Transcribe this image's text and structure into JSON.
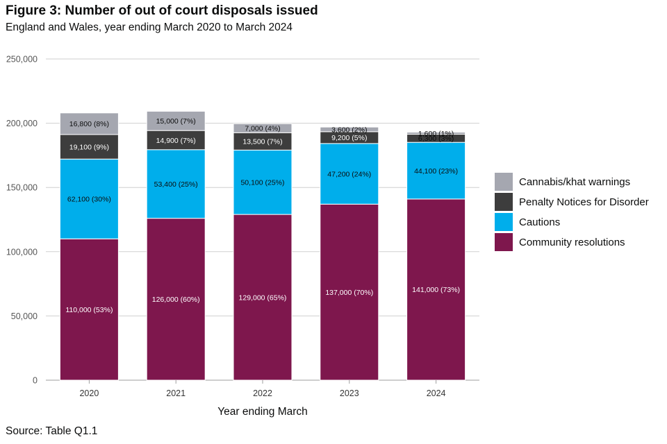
{
  "title": "Figure 3: Number of out of court disposals issued",
  "subtitle": "England and Wales, year ending March 2020 to March 2024",
  "source": "Source: Table Q1.1",
  "chart_data": {
    "type": "bar",
    "stacked": true,
    "title": "Figure 3: Number of out of court disposals issued",
    "subtitle": "England and Wales, year ending March 2020 to March 2024",
    "xlabel": "Year ending March",
    "ylabel": "",
    "ylim": [
      0,
      250000
    ],
    "yticks": [
      0,
      50000,
      100000,
      150000,
      200000,
      250000
    ],
    "ytick_labels": [
      "0",
      "50,000",
      "100,000",
      "150,000",
      "200,000",
      "250,000"
    ],
    "categories": [
      "2020",
      "2021",
      "2022",
      "2023",
      "2024"
    ],
    "grid": true,
    "legend_position": "right",
    "series": [
      {
        "name": "Community resolutions",
        "color": "#7e174d",
        "label_color": "#ffffff",
        "values": [
          110000,
          126000,
          129000,
          137000,
          141000
        ],
        "labels": [
          "110,000 (53%)",
          "126,000 (60%)",
          "129,000 (65%)",
          "137,000 (70%)",
          "141,000 (73%)"
        ]
      },
      {
        "name": "Cautions",
        "color": "#00aeeb",
        "label_color": "#0b0c0c",
        "values": [
          62100,
          53400,
          50100,
          47200,
          44100
        ],
        "labels": [
          "62,100 (30%)",
          "53,400 (25%)",
          "50,100 (25%)",
          "47,200 (24%)",
          "44,100 (23%)"
        ]
      },
      {
        "name": "Penalty Notices for Disorder",
        "color": "#3d3d3d",
        "label_color": "#ffffff",
        "values": [
          19100,
          14900,
          13500,
          9200,
          6300
        ],
        "labels": [
          "19,100 (9%)",
          "14,900 (7%)",
          "13,500 (7%)",
          "9,200 (5%)",
          "6,300 (3%)"
        ]
      },
      {
        "name": "Cannabis/khat warnings",
        "color": "#a5a7b0",
        "label_color": "#0b0c0c",
        "values": [
          16800,
          15000,
          7000,
          3600,
          1600
        ],
        "labels": [
          "16,800 (8%)",
          "15,000 (7%)",
          "7,000 (4%)",
          "3,600 (2%)",
          "1,600 (1%)"
        ]
      }
    ],
    "legend_order": [
      "Cannabis/khat warnings",
      "Penalty Notices for Disorder",
      "Cautions",
      "Community resolutions"
    ]
  }
}
